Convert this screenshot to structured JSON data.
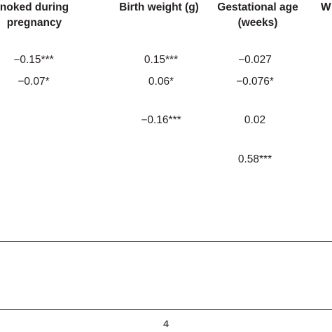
{
  "table": {
    "headers": [
      {
        "line1": "noked during",
        "line2": "pregnancy"
      },
      {
        "line1": "Birth weight (g)",
        "line2": ""
      },
      {
        "line1": "Gestational age",
        "line2": "(weeks)"
      },
      {
        "line1": "W",
        "line2": ""
      }
    ],
    "rows": [
      [
        "−0.15***",
        "0.15***",
        "−0.027"
      ],
      [
        "−0.07*",
        "0.06*",
        "−0.076*"
      ],
      [
        "",
        "−0.16***",
        "0.02"
      ],
      [
        "",
        "",
        "0.58***"
      ]
    ]
  },
  "footer": {
    "page_number": "4"
  }
}
